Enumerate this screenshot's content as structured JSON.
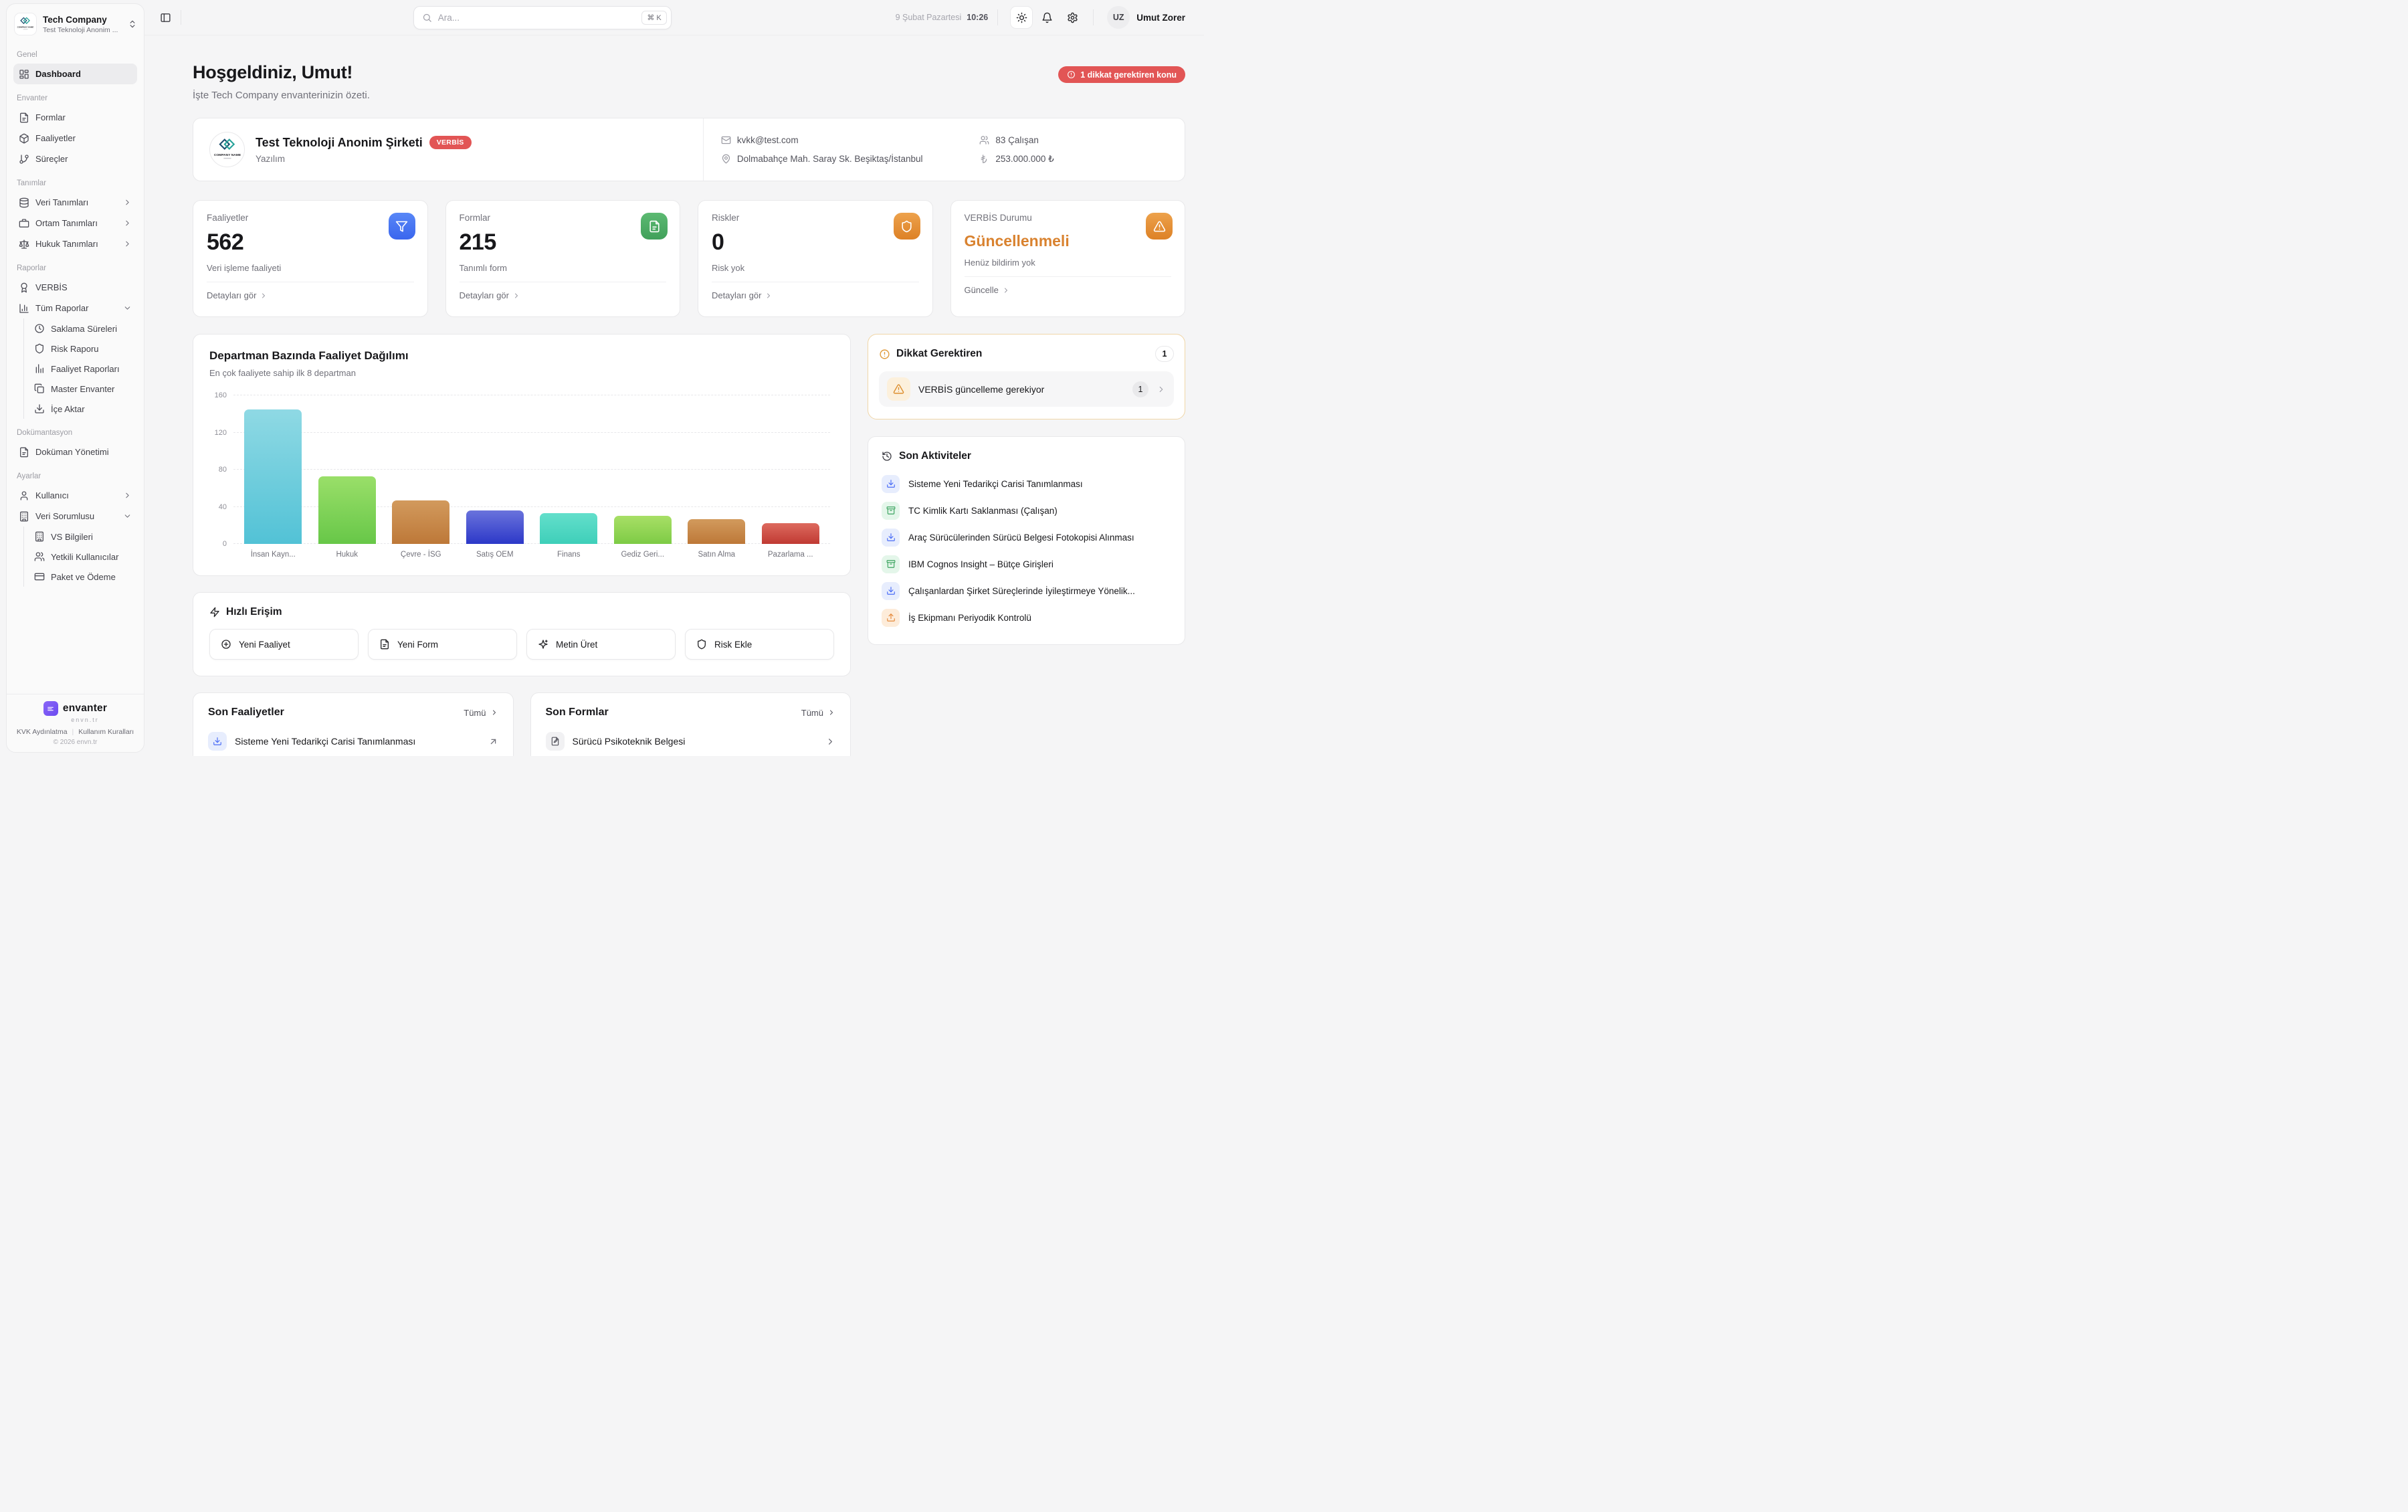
{
  "sidebar": {
    "company": {
      "name": "Tech Company",
      "subtitle": "Test Teknoloji Anonim ..."
    },
    "sections": [
      {
        "label": "Genel",
        "items": [
          {
            "label": "Dashboard",
            "icon": "layout-dashboard",
            "active": true
          }
        ]
      },
      {
        "label": "Envanter",
        "items": [
          {
            "label": "Formlar",
            "icon": "file-text"
          },
          {
            "label": "Faaliyetler",
            "icon": "package"
          },
          {
            "label": "Süreçler",
            "icon": "git-branch"
          }
        ]
      },
      {
        "label": "Tanımlar",
        "items": [
          {
            "label": "Veri Tanımları",
            "icon": "database",
            "chevron": "right"
          },
          {
            "label": "Ortam Tanımları",
            "icon": "briefcase",
            "chevron": "right"
          },
          {
            "label": "Hukuk Tanımları",
            "icon": "scale",
            "chevron": "right"
          }
        ]
      },
      {
        "label": "Raporlar",
        "items": [
          {
            "label": "VERBİS",
            "icon": "award"
          },
          {
            "label": "Tüm Raporlar",
            "icon": "bar-chart",
            "chevron": "down",
            "children": [
              {
                "label": "Saklama Süreleri",
                "icon": "clock"
              },
              {
                "label": "Risk Raporu",
                "icon": "shield"
              },
              {
                "label": "Faaliyet Raporları",
                "icon": "bar-lines"
              },
              {
                "label": "Master Envanter",
                "icon": "copy"
              },
              {
                "label": "İçe Aktar",
                "icon": "download"
              }
            ]
          }
        ]
      },
      {
        "label": "Dokümantasyon",
        "items": [
          {
            "label": "Doküman Yönetimi",
            "icon": "file-text"
          }
        ]
      },
      {
        "label": "Ayarlar",
        "items": [
          {
            "label": "Kullanıcı",
            "icon": "user",
            "chevron": "right"
          },
          {
            "label": "Veri Sorumlusu",
            "icon": "building",
            "chevron": "down",
            "children": [
              {
                "label": "VS Bilgileri",
                "icon": "building"
              },
              {
                "label": "Yetkili Kullanıcılar",
                "icon": "users"
              },
              {
                "label": "Paket ve Ödeme",
                "icon": "credit-card"
              }
            ]
          }
        ]
      }
    ],
    "footer": {
      "brand": "envanter",
      "domain": "envn.tr",
      "link1": "KVK Aydınlatma",
      "link2": "Kullanım Kuralları",
      "copyright": "© 2026 envn.tr"
    }
  },
  "topbar": {
    "search_placeholder": "Ara...",
    "search_shortcut": "⌘ K",
    "date": "9 Şubat Pazartesi",
    "time": "10:26",
    "user_initials": "UZ",
    "user_name": "Umut Zorer"
  },
  "header": {
    "title": "Hoşgeldiniz, Umut!",
    "subtitle": "İşte Tech Company envanterinizin özeti.",
    "alert_badge": "1 dikkat gerektiren konu",
    "alert_color": "#e25555"
  },
  "company_card": {
    "name": "Test Teknoloji Anonim Şirketi",
    "badge": "VERBİS",
    "badge_color": "#e25555",
    "sector": "Yazılım",
    "email": "kvkk@test.com",
    "address": "Dolmabahçe Mah. Saray Sk. Beşiktaş/İstanbul",
    "employees": "83 Çalışan",
    "capital": "253.000.000 ₺",
    "logo_text": "COMPANY NAME"
  },
  "stat_cards": [
    {
      "title": "Faaliyetler",
      "value": "562",
      "subtitle": "Veri işleme faaliyeti",
      "link": "Detayları gör",
      "icon": "funnel",
      "accent": "#3f6cf0"
    },
    {
      "title": "Formlar",
      "value": "215",
      "subtitle": "Tanımlı form",
      "link": "Detayları gör",
      "icon": "file-text",
      "accent": "#46a45f"
    },
    {
      "title": "Riskler",
      "value": "0",
      "subtitle": "Risk yok",
      "link": "Detayları gör",
      "icon": "shield",
      "accent": "#e3912f"
    },
    {
      "title": "VERBİS Durumu",
      "value": "Güncellenmeli",
      "subtitle": "Henüz bildirim yok",
      "link": "Güncelle",
      "icon": "alert-triangle",
      "accent": "#e3912f",
      "value_color": "#d9822f"
    }
  ],
  "chart_data": {
    "type": "bar",
    "title": "Departman Bazında Faaliyet Dağılımı",
    "subtitle": "En çok faaliyete sahip ilk 8 departman",
    "categories": [
      "İnsan Kayn...",
      "Hukuk",
      "Çevre - İSG",
      "Satış OEM",
      "Finans",
      "Gediz Geri...",
      "Satın Alma",
      "Pazarlama ..."
    ],
    "values": [
      145,
      73,
      47,
      36,
      33,
      30,
      27,
      22
    ],
    "bar_colors": [
      [
        "#8fd9e4",
        "#52c2d6"
      ],
      [
        "#9adf69",
        "#67c748"
      ],
      [
        "#d29a5d",
        "#bd7838"
      ],
      [
        "#6a73dc",
        "#2c38c8"
      ],
      [
        "#63dfcb",
        "#3ecfb9"
      ],
      [
        "#a8df66",
        "#7dcb45"
      ],
      [
        "#d29a5d",
        "#bd7838"
      ],
      [
        "#dd6a5e",
        "#c03a33"
      ]
    ],
    "xlabel": "",
    "ylabel": "",
    "ylim": [
      0,
      160
    ],
    "yticks": [
      0,
      40,
      80,
      120,
      160
    ],
    "grid": "horizontal-dashed",
    "legend": "none"
  },
  "attention": {
    "title": "Dikkat Gerektiren",
    "count": "1",
    "item": {
      "label": "VERBİS güncelleme gerekiyor",
      "count": "1",
      "icon": "alert-triangle"
    }
  },
  "activities": {
    "title": "Son Aktiviteler",
    "items": [
      {
        "icon": "download",
        "color": "blue",
        "label": "Sisteme Yeni Tedarikçi Carisi Tanımlanması"
      },
      {
        "icon": "archive",
        "color": "green",
        "label": "TC Kimlik Kartı Saklanması (Çalışan)"
      },
      {
        "icon": "download",
        "color": "blue",
        "label": "Araç Sürücülerinden Sürücü Belgesi Fotokopisi Alınması"
      },
      {
        "icon": "archive",
        "color": "green",
        "label": "IBM Cognos Insight – Bütçe Girişleri"
      },
      {
        "icon": "download",
        "color": "blue",
        "label": "Çalışanlardan Şirket Süreçlerinde İyileştirmeye Yönelik..."
      },
      {
        "icon": "upload",
        "color": "orange",
        "label": "İş Ekipmanı Periyodik Kontrolü"
      }
    ]
  },
  "quick_access": {
    "title": "Hızlı Erişim",
    "actions": [
      {
        "icon": "plus-circle",
        "label": "Yeni Faaliyet"
      },
      {
        "icon": "file-text",
        "label": "Yeni Form"
      },
      {
        "icon": "sparkles",
        "label": "Metin Üret"
      },
      {
        "icon": "shield",
        "label": "Risk Ekle"
      }
    ]
  },
  "recent_left": {
    "title": "Son Faaliyetler",
    "link": "Tümü",
    "item": "Sisteme Yeni Tedarikçi Carisi Tanımlanması",
    "item_icon": "download"
  },
  "recent_right": {
    "title": "Son Formlar",
    "link": "Tümü",
    "item": "Sürücü Psikoteknik Belgesi",
    "item_icon": "file-pen"
  }
}
